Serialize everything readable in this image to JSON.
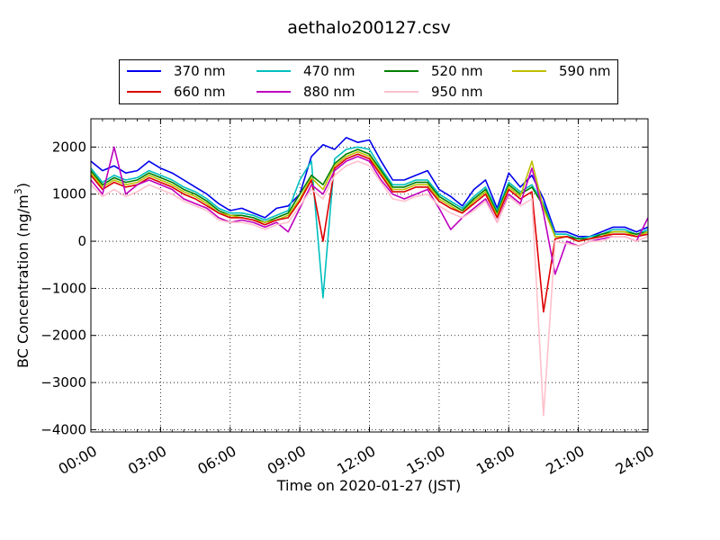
{
  "chart_data": {
    "type": "line",
    "title": "aethalo200127.csv",
    "xlabel": "Time on 2020-01-27 (JST)",
    "ylabel": "BC Concentration (ng/m³)",
    "ylabel_main": "BC Concentration (ng/m",
    "ylabel_sup": "3",
    "ylabel_end": ")",
    "x_unit": "hours",
    "xlim": [
      0,
      24
    ],
    "ylim": [
      -4050,
      2600
    ],
    "grid": true,
    "legend_position": "top-center",
    "x_ticks": [
      0,
      3,
      6,
      9,
      12,
      15,
      18,
      21,
      24
    ],
    "x_tick_labels": [
      "00:00",
      "03:00",
      "06:00",
      "09:00",
      "12:00",
      "15:00",
      "18:00",
      "21:00",
      "24:00"
    ],
    "y_ticks": [
      -4000,
      -3000,
      -2000,
      -1000,
      0,
      1000,
      2000
    ],
    "y_tick_labels": [
      "−4000",
      "−3000",
      "−2000",
      "−1000",
      "0",
      "1000",
      "2000"
    ],
    "x": [
      0,
      0.5,
      1,
      1.5,
      2,
      2.5,
      3,
      3.5,
      4,
      4.5,
      5,
      5.5,
      6,
      6.5,
      7,
      7.5,
      8,
      8.5,
      9,
      9.5,
      10,
      10.5,
      11,
      11.5,
      12,
      12.5,
      13,
      13.5,
      14,
      14.5,
      15,
      15.5,
      16,
      16.5,
      17,
      17.5,
      18,
      18.5,
      19,
      19.5,
      20,
      20.5,
      21,
      21.5,
      22,
      22.5,
      23,
      23.5,
      24
    ],
    "series": [
      {
        "name": "370 nm",
        "color": "#0000ee",
        "values": [
          1700,
          1500,
          1600,
          1450,
          1500,
          1700,
          1550,
          1450,
          1300,
          1150,
          1000,
          800,
          650,
          700,
          600,
          500,
          700,
          750,
          1000,
          1800,
          2050,
          1950,
          2200,
          2100,
          2150,
          1700,
          1300,
          1300,
          1400,
          1500,
          1100,
          950,
          750,
          1100,
          1300,
          700,
          1450,
          1150,
          1400,
          900,
          200,
          200,
          100,
          100,
          200,
          300,
          300,
          200,
          300
        ]
      },
      {
        "name": "470 nm",
        "color": "#00bfbf",
        "values": [
          1550,
          1250,
          1400,
          1300,
          1350,
          1500,
          1400,
          1300,
          1150,
          1050,
          900,
          700,
          600,
          600,
          550,
          450,
          550,
          650,
          1300,
          1700,
          -1200,
          1750,
          1950,
          2000,
          1950,
          1550,
          1200,
          1200,
          1300,
          1300,
          1000,
          850,
          700,
          950,
          1150,
          650,
          1250,
          1050,
          1200,
          800,
          150,
          150,
          50,
          100,
          150,
          250,
          250,
          150,
          250
        ]
      },
      {
        "name": "520 nm",
        "color": "#008000",
        "values": [
          1500,
          1200,
          1350,
          1250,
          1300,
          1450,
          1350,
          1250,
          1100,
          1000,
          850,
          650,
          550,
          550,
          500,
          400,
          500,
          600,
          1000,
          1400,
          1200,
          1650,
          1850,
          1950,
          1850,
          1500,
          1150,
          1150,
          1250,
          1250,
          950,
          800,
          650,
          900,
          1100,
          600,
          1200,
          1000,
          1150,
          750,
          100,
          100,
          50,
          50,
          150,
          200,
          200,
          150,
          200
        ]
      },
      {
        "name": "590 nm",
        "color": "#bfbf00",
        "values": [
          1450,
          1150,
          1300,
          1200,
          1250,
          1400,
          1300,
          1200,
          1050,
          950,
          800,
          600,
          550,
          500,
          450,
          400,
          450,
          550,
          900,
          1350,
          1100,
          1600,
          1800,
          1900,
          1800,
          1450,
          1100,
          1100,
          1200,
          1200,
          900,
          750,
          600,
          850,
          1050,
          550,
          1150,
          950,
          1700,
          700,
          100,
          100,
          0,
          50,
          100,
          200,
          200,
          100,
          200
        ]
      },
      {
        "name": "660 nm",
        "color": "#dd0000",
        "values": [
          1400,
          1100,
          1250,
          1150,
          1200,
          1350,
          1250,
          1150,
          1000,
          900,
          750,
          600,
          500,
          500,
          450,
          350,
          450,
          500,
          850,
          1300,
          0,
          1550,
          1750,
          1850,
          1750,
          1400,
          1050,
          1050,
          1150,
          1150,
          850,
          700,
          600,
          800,
          1000,
          500,
          1100,
          900,
          1050,
          -1500,
          50,
          100,
          0,
          50,
          100,
          150,
          150,
          100,
          150
        ]
      },
      {
        "name": "880 nm",
        "color": "#bf00bf",
        "values": [
          1300,
          1000,
          2000,
          1000,
          1200,
          1300,
          1200,
          1100,
          900,
          800,
          700,
          500,
          400,
          450,
          400,
          300,
          400,
          200,
          700,
          1200,
          1000,
          1500,
          1700,
          1800,
          1700,
          1300,
          1000,
          900,
          1000,
          1100,
          700,
          250,
          500,
          700,
          900,
          400,
          1000,
          800,
          1550,
          600,
          -700,
          0,
          -100,
          0,
          50,
          100,
          100,
          0,
          500
        ]
      },
      {
        "name": "950 nm",
        "color": "#ffc0cb",
        "values": [
          1200,
          950,
          1100,
          950,
          1050,
          1200,
          1100,
          1000,
          850,
          750,
          650,
          450,
          400,
          400,
          350,
          250,
          350,
          400,
          750,
          1100,
          900,
          1400,
          1600,
          1700,
          1600,
          1250,
          900,
          850,
          950,
          1000,
          750,
          600,
          500,
          650,
          850,
          400,
          950,
          750,
          900,
          -3700,
          0,
          -50,
          -100,
          0,
          0,
          100,
          100,
          0,
          100
        ]
      }
    ]
  }
}
